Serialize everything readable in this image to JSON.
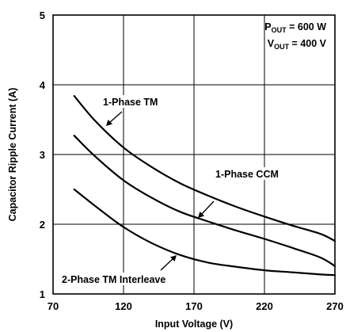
{
  "chart_data": {
    "type": "line",
    "xlabel": "Input Voltage (V)",
    "ylabel": "Capacitor Ripple Current (A)",
    "xlim": [
      70,
      270
    ],
    "ylim": [
      1,
      5
    ],
    "xticks": [
      70,
      120,
      170,
      220,
      270
    ],
    "yticks": [
      1,
      2,
      3,
      4,
      5
    ],
    "grid": true,
    "conditions": {
      "pout": {
        "main": "P",
        "sub": "OUT",
        "value": " = 600 W"
      },
      "vout": {
        "main": "V",
        "sub": "OUT",
        "value": " = 400 V"
      }
    },
    "series": [
      {
        "name": "1-Phase TM",
        "x": [
          85,
          100,
          120,
          140,
          160,
          180,
          200,
          220,
          240,
          260,
          270
        ],
        "y": [
          3.84,
          3.48,
          3.1,
          2.82,
          2.59,
          2.41,
          2.25,
          2.11,
          1.98,
          1.86,
          1.76
        ]
      },
      {
        "name": "1-Phase CCM",
        "x": [
          85,
          100,
          120,
          140,
          160,
          180,
          200,
          220,
          240,
          260,
          270
        ],
        "y": [
          3.27,
          2.97,
          2.63,
          2.38,
          2.18,
          2.04,
          1.91,
          1.79,
          1.66,
          1.52,
          1.4
        ]
      },
      {
        "name": "2-Phase TM Interleave",
        "x": [
          85,
          100,
          120,
          140,
          160,
          180,
          200,
          220,
          240,
          260,
          270
        ],
        "y": [
          2.5,
          2.26,
          1.96,
          1.73,
          1.56,
          1.45,
          1.39,
          1.34,
          1.31,
          1.28,
          1.27
        ]
      }
    ]
  }
}
